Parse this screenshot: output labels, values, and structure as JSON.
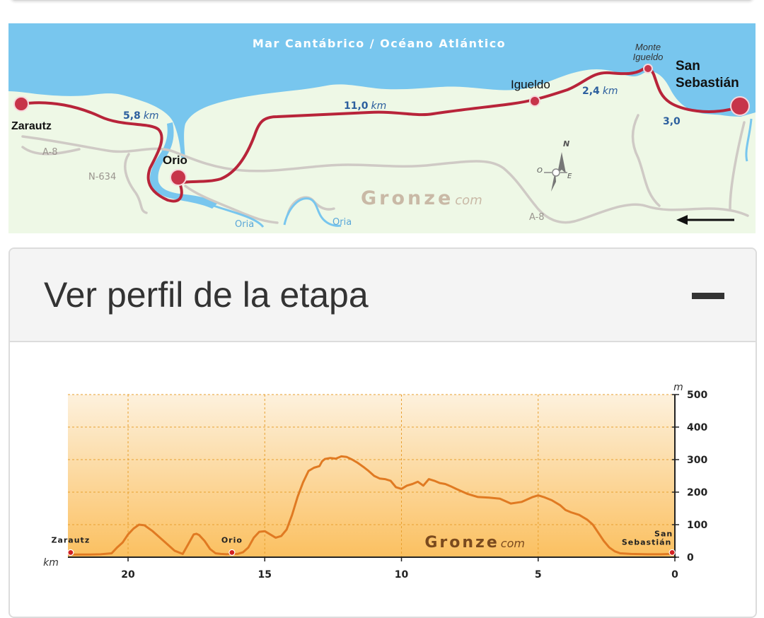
{
  "map": {
    "sea_label": "Mar Cantábrico / Océano Atlántico",
    "towns": {
      "zarautz": "Zarautz",
      "orio": "Orio",
      "igueldo": "Igueldo",
      "monte_igueldo_1": "Monte",
      "monte_igueldo_2": "Igueldo",
      "san_sebastian_1": "San",
      "san_sebastian_2": "Sebastián"
    },
    "distances": [
      {
        "value": "5,8",
        "unit": "km"
      },
      {
        "value": "11,0",
        "unit": "km"
      },
      {
        "value": "2,4",
        "unit": "km"
      },
      {
        "value": "3,0",
        "unit": ""
      }
    ],
    "roads": {
      "a8_west": "A-8",
      "n634": "N-634",
      "a8_east": "A-8"
    },
    "rivers": {
      "oria_1": "Oria",
      "oria_2": "Oria"
    },
    "watermark": {
      "brand": "Gronze",
      "suffix": "com"
    },
    "compass": {
      "north": "N",
      "west": "O",
      "east": "E"
    }
  },
  "profile_panel": {
    "title": "Ver perfil de la etapa"
  },
  "chart_data": {
    "type": "area",
    "title": "",
    "xlabel": "km",
    "ylabel": "m",
    "xlim": [
      22.2,
      0
    ],
    "ylim": [
      0,
      500
    ],
    "xticks": [
      20,
      15,
      10,
      5,
      0
    ],
    "yticks": [
      0,
      100,
      200,
      300,
      400,
      500
    ],
    "grid": true,
    "colors": {
      "line": "#e07a22",
      "fill_top": "#fdf1dd",
      "fill_bottom": "#fbc060",
      "point": "#d22020"
    },
    "waypoints": [
      {
        "name": "Zarautz",
        "km": 22.1,
        "elevation": 10
      },
      {
        "name": "Orio",
        "km": 16.2,
        "elevation": 10
      },
      {
        "name_1": "San",
        "name_2": "Sebastián",
        "km": 0.1,
        "elevation": 10
      }
    ],
    "watermark": {
      "brand": "Gronze",
      "suffix": "com"
    },
    "series": [
      {
        "x": [
          22.2,
          21.5,
          21.0,
          20.6,
          20.4,
          20.2,
          20.0,
          19.8,
          19.6,
          19.4,
          19.1,
          18.7,
          18.3,
          18.0,
          17.8,
          17.6,
          17.5,
          17.4,
          17.2,
          17.0,
          16.8,
          16.6,
          16.4,
          16.2,
          16.0,
          15.8,
          15.6,
          15.4,
          15.2,
          15.0,
          14.8,
          14.6,
          14.4,
          14.2,
          14.0,
          13.8,
          13.6,
          13.4,
          13.2,
          13.0,
          12.9,
          12.8,
          12.6,
          12.4,
          12.2,
          12.0,
          11.8,
          11.6,
          11.4,
          11.2,
          11.0,
          10.8,
          10.6,
          10.4,
          10.2,
          10.0,
          9.8,
          9.6,
          9.4,
          9.2,
          9.0,
          8.8,
          8.6,
          8.4,
          8.2,
          8.0,
          7.6,
          7.2,
          6.8,
          6.4,
          6.0,
          5.6,
          5.2,
          5.0,
          4.8,
          4.5,
          4.2,
          4.0,
          3.8,
          3.5,
          3.2,
          3.0,
          2.8,
          2.6,
          2.4,
          2.2,
          2.0,
          1.6,
          1.0,
          0.5,
          0.1,
          0.0
        ],
        "y": [
          8,
          8,
          9,
          12,
          30,
          45,
          70,
          88,
          100,
          98,
          80,
          50,
          20,
          10,
          40,
          70,
          72,
          68,
          50,
          25,
          12,
          10,
          9,
          10,
          10,
          15,
          30,
          60,
          78,
          80,
          70,
          60,
          65,
          85,
          130,
          185,
          230,
          265,
          275,
          280,
          295,
          302,
          305,
          303,
          310,
          308,
          300,
          290,
          278,
          265,
          250,
          242,
          240,
          235,
          215,
          210,
          220,
          225,
          232,
          220,
          240,
          235,
          228,
          225,
          218,
          210,
          195,
          185,
          183,
          180,
          165,
          170,
          185,
          190,
          185,
          175,
          160,
          145,
          138,
          130,
          115,
          100,
          75,
          50,
          30,
          18,
          12,
          10,
          9,
          9,
          10,
          10
        ]
      }
    ]
  }
}
